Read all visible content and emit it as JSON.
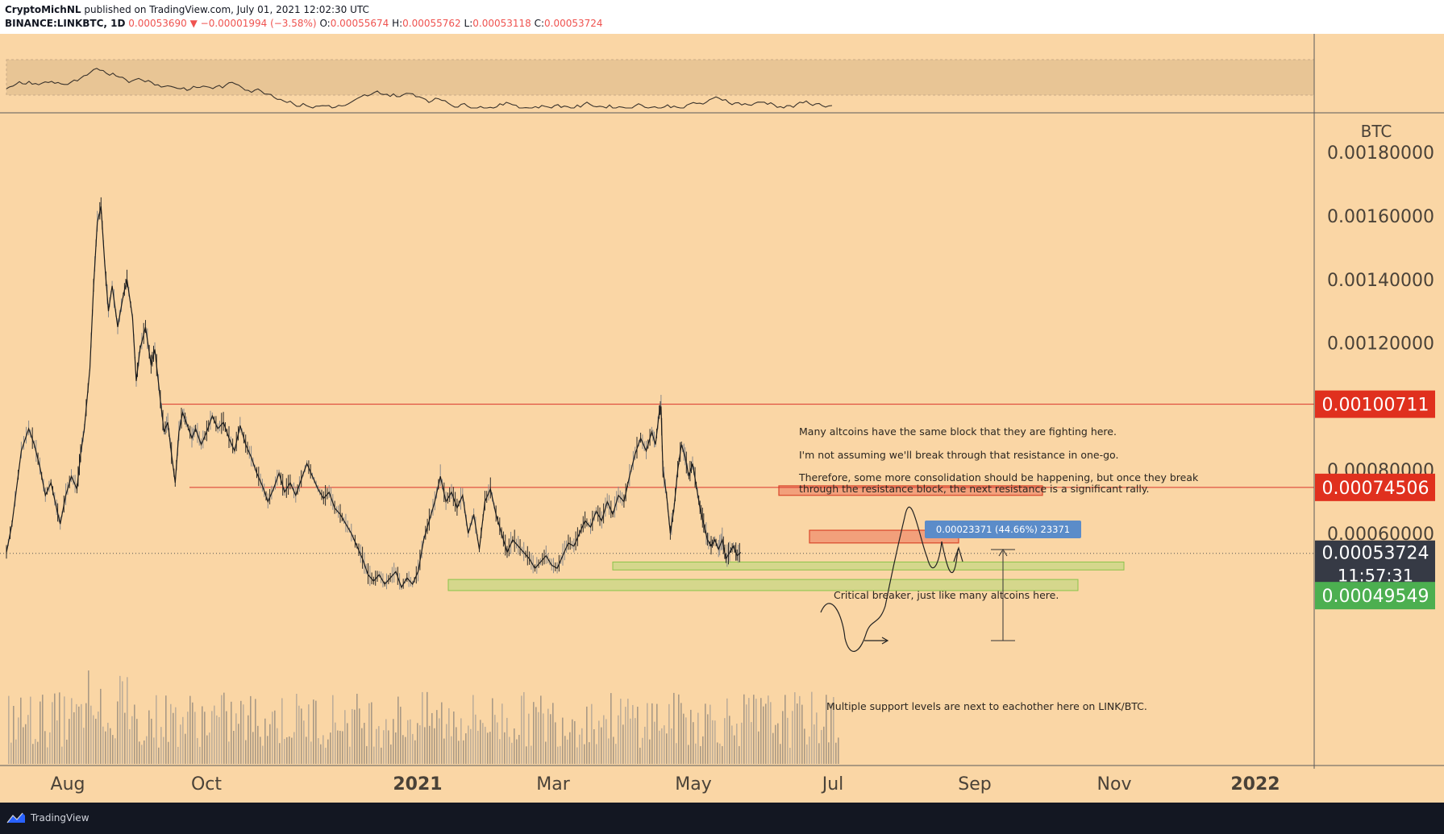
{
  "header": {
    "author": "CryptoMichNL",
    "published_text": "published on TradingView.com, July 01, 2021 12:02:30 UTC",
    "symbol": "BINANCE:LINKBTC, 1D",
    "last": "0.00053690",
    "change": "▼ −0.00001994 (−3.58%)",
    "ohlc": [
      {
        "label": "O:",
        "value": "0.00055674"
      },
      {
        "label": "H:",
        "value": "0.00055762"
      },
      {
        "label": "L:",
        "value": "0.00053118"
      },
      {
        "label": "C:",
        "value": "0.00053724"
      }
    ]
  },
  "colors": {
    "background": "#fad6a5",
    "axis_text": "#5d5247",
    "resistance": "#e05030",
    "support": "#9ccc65",
    "price_tag": "#363a45",
    "resistance_tag": "#e0301e",
    "support_tag": "#4caf50"
  },
  "chart_data": {
    "type": "candlestick",
    "symbol": "LINKBTC",
    "quote_currency": "BTC",
    "interval": "1D",
    "x_labels": [
      "Aug",
      "Oct",
      "2021",
      "Mar",
      "May",
      "Jul",
      "Sep",
      "Nov",
      "2022"
    ],
    "y_ticks": [
      "0.00180000",
      "0.00160000",
      "0.00140000",
      "0.00120000",
      "0.00080000",
      "0.00060000"
    ],
    "ylim": [
      0.00038,
      0.00182
    ],
    "price_tags": {
      "resistance_upper": "0.00100711",
      "resistance_lower": "0.00074506",
      "current": "0.00053724",
      "countdown": "11:57:31",
      "support": "0.00049549"
    },
    "measure_label": "0.00023371 (44.66%) 23371",
    "annotations": [
      "Many altcoins have the same block that they are fighting here.",
      "I'm not assuming we'll break through that resistance in one-go.",
      "Therefore, some more consolidation should be happening, but once they break",
      "through the resistance block, the next resistance is a significant rally.",
      "Critical breaker, just like many altcoins here.",
      "Multiple support levels are next to eachother here on LINK/BTC."
    ],
    "resistance_lines": [
      0.00100711,
      0.00074506
    ],
    "resistance_zones": [
      [
        0.00072,
        0.00075
      ],
      [
        0.00057,
        0.00061
      ]
    ],
    "support_zones": [
      [
        0.000485,
        0.00051
      ],
      [
        0.00042,
        0.000455
      ]
    ],
    "close_series": [
      {
        "t": 0,
        "p": 0.00054
      },
      {
        "t": 3,
        "p": 0.00063
      },
      {
        "t": 8,
        "p": 0.00086
      },
      {
        "t": 12,
        "p": 0.00093
      },
      {
        "t": 15,
        "p": 0.00088
      },
      {
        "t": 18,
        "p": 0.00081
      },
      {
        "t": 21,
        "p": 0.00072
      },
      {
        "t": 24,
        "p": 0.00076
      },
      {
        "t": 27,
        "p": 0.00068
      },
      {
        "t": 29,
        "p": 0.00063
      },
      {
        "t": 32,
        "p": 0.00072
      },
      {
        "t": 35,
        "p": 0.00078
      },
      {
        "t": 38,
        "p": 0.00074
      },
      {
        "t": 40,
        "p": 0.00085
      },
      {
        "t": 42,
        "p": 0.00093
      },
      {
        "t": 45,
        "p": 0.00112
      },
      {
        "t": 47,
        "p": 0.00138
      },
      {
        "t": 49,
        "p": 0.00158
      },
      {
        "t": 51,
        "p": 0.00163
      },
      {
        "t": 53,
        "p": 0.00145
      },
      {
        "t": 55,
        "p": 0.0013
      },
      {
        "t": 57,
        "p": 0.00138
      },
      {
        "t": 60,
        "p": 0.00125
      },
      {
        "t": 63,
        "p": 0.00135
      },
      {
        "t": 65,
        "p": 0.0014
      },
      {
        "t": 68,
        "p": 0.00128
      },
      {
        "t": 70,
        "p": 0.00108
      },
      {
        "t": 72,
        "p": 0.00118
      },
      {
        "t": 75,
        "p": 0.00125
      },
      {
        "t": 78,
        "p": 0.00113
      },
      {
        "t": 80,
        "p": 0.00118
      },
      {
        "t": 83,
        "p": 0.00102
      },
      {
        "t": 85,
        "p": 0.00092
      },
      {
        "t": 87,
        "p": 0.00095
      },
      {
        "t": 89,
        "p": 0.00085
      },
      {
        "t": 91,
        "p": 0.00076
      },
      {
        "t": 93,
        "p": 0.00092
      },
      {
        "t": 95,
        "p": 0.00098
      },
      {
        "t": 97,
        "p": 0.00095
      },
      {
        "t": 100,
        "p": 0.0009
      },
      {
        "t": 102,
        "p": 0.00093
      },
      {
        "t": 105,
        "p": 0.00088
      },
      {
        "t": 108,
        "p": 0.00092
      },
      {
        "t": 111,
        "p": 0.00097
      },
      {
        "t": 114,
        "p": 0.00093
      },
      {
        "t": 117,
        "p": 0.00095
      },
      {
        "t": 120,
        "p": 0.0009
      },
      {
        "t": 123,
        "p": 0.00086
      },
      {
        "t": 126,
        "p": 0.00094
      },
      {
        "t": 129,
        "p": 0.00088
      },
      {
        "t": 132,
        "p": 0.00084
      },
      {
        "t": 135,
        "p": 0.00079
      },
      {
        "t": 138,
        "p": 0.00075
      },
      {
        "t": 141,
        "p": 0.0007
      },
      {
        "t": 144,
        "p": 0.00074
      },
      {
        "t": 147,
        "p": 0.00079
      },
      {
        "t": 150,
        "p": 0.00073
      },
      {
        "t": 153,
        "p": 0.00076
      },
      {
        "t": 156,
        "p": 0.00072
      },
      {
        "t": 159,
        "p": 0.00077
      },
      {
        "t": 162,
        "p": 0.00082
      },
      {
        "t": 165,
        "p": 0.00078
      },
      {
        "t": 168,
        "p": 0.00074
      },
      {
        "t": 171,
        "p": 0.00071
      },
      {
        "t": 174,
        "p": 0.00073
      },
      {
        "t": 177,
        "p": 0.00068
      },
      {
        "t": 180,
        "p": 0.00066
      },
      {
        "t": 183,
        "p": 0.00063
      },
      {
        "t": 186,
        "p": 0.0006
      },
      {
        "t": 189,
        "p": 0.00056
      },
      {
        "t": 192,
        "p": 0.00052
      },
      {
        "t": 195,
        "p": 0.00047
      },
      {
        "t": 198,
        "p": 0.00045
      },
      {
        "t": 201,
        "p": 0.00047
      },
      {
        "t": 204,
        "p": 0.00044
      },
      {
        "t": 207,
        "p": 0.00046
      },
      {
        "t": 210,
        "p": 0.00048
      },
      {
        "t": 213,
        "p": 0.00043
      },
      {
        "t": 216,
        "p": 0.00046
      },
      {
        "t": 219,
        "p": 0.00044
      },
      {
        "t": 222,
        "p": 0.00048
      },
      {
        "t": 225,
        "p": 0.00058
      },
      {
        "t": 228,
        "p": 0.00064
      },
      {
        "t": 231,
        "p": 0.0007
      },
      {
        "t": 234,
        "p": 0.00078
      },
      {
        "t": 237,
        "p": 0.0007
      },
      {
        "t": 240,
        "p": 0.00073
      },
      {
        "t": 243,
        "p": 0.00068
      },
      {
        "t": 246,
        "p": 0.00072
      },
      {
        "t": 249,
        "p": 0.0006
      },
      {
        "t": 252,
        "p": 0.00066
      },
      {
        "t": 255,
        "p": 0.00055
      },
      {
        "t": 258,
        "p": 0.0007
      },
      {
        "t": 261,
        "p": 0.00074
      },
      {
        "t": 264,
        "p": 0.00066
      },
      {
        "t": 267,
        "p": 0.0006
      },
      {
        "t": 270,
        "p": 0.00054
      },
      {
        "t": 273,
        "p": 0.00058
      },
      {
        "t": 276,
        "p": 0.00056
      },
      {
        "t": 279,
        "p": 0.00054
      },
      {
        "t": 282,
        "p": 0.00052
      },
      {
        "t": 285,
        "p": 0.00049
      },
      {
        "t": 288,
        "p": 0.00051
      },
      {
        "t": 291,
        "p": 0.00053
      },
      {
        "t": 294,
        "p": 0.0005
      },
      {
        "t": 297,
        "p": 0.00049
      },
      {
        "t": 300,
        "p": 0.00053
      },
      {
        "t": 303,
        "p": 0.00057
      },
      {
        "t": 306,
        "p": 0.00056
      },
      {
        "t": 309,
        "p": 0.0006
      },
      {
        "t": 312,
        "p": 0.00064
      },
      {
        "t": 315,
        "p": 0.00062
      },
      {
        "t": 318,
        "p": 0.00067
      },
      {
        "t": 321,
        "p": 0.00064
      },
      {
        "t": 324,
        "p": 0.0007
      },
      {
        "t": 327,
        "p": 0.00066
      },
      {
        "t": 330,
        "p": 0.00072
      },
      {
        "t": 333,
        "p": 0.0007
      },
      {
        "t": 336,
        "p": 0.00078
      },
      {
        "t": 339,
        "p": 0.00085
      },
      {
        "t": 342,
        "p": 0.0009
      },
      {
        "t": 345,
        "p": 0.00086
      },
      {
        "t": 348,
        "p": 0.00092
      },
      {
        "t": 350,
        "p": 0.00088
      },
      {
        "t": 352,
        "p": 0.00098
      },
      {
        "t": 353,
        "p": 0.001
      },
      {
        "t": 354,
        "p": 0.0008
      },
      {
        "t": 356,
        "p": 0.00072
      },
      {
        "t": 358,
        "p": 0.0006
      },
      {
        "t": 360,
        "p": 0.00068
      },
      {
        "t": 362,
        "p": 0.0008
      },
      {
        "t": 364,
        "p": 0.00088
      },
      {
        "t": 366,
        "p": 0.00084
      },
      {
        "t": 368,
        "p": 0.00078
      },
      {
        "t": 370,
        "p": 0.00082
      },
      {
        "t": 372,
        "p": 0.00075
      },
      {
        "t": 374,
        "p": 0.00068
      },
      {
        "t": 376,
        "p": 0.00063
      },
      {
        "t": 378,
        "p": 0.00058
      },
      {
        "t": 380,
        "p": 0.00056
      },
      {
        "t": 382,
        "p": 0.00058
      },
      {
        "t": 384,
        "p": 0.00055
      },
      {
        "t": 386,
        "p": 0.00058
      },
      {
        "t": 388,
        "p": 0.00052
      },
      {
        "t": 390,
        "p": 0.00054
      },
      {
        "t": 392,
        "p": 0.00056
      },
      {
        "t": 394,
        "p": 0.00053
      },
      {
        "t": 396,
        "p": 0.00054
      }
    ]
  },
  "footer": {
    "brand": "TradingView"
  }
}
